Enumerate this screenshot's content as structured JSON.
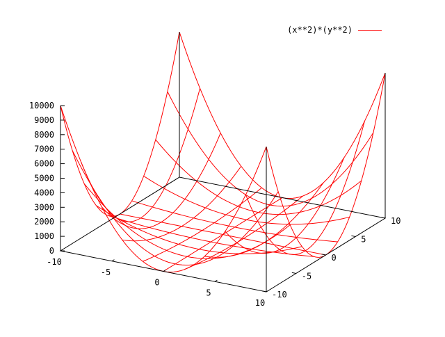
{
  "chart_data": {
    "type": "surface",
    "function": "(x**2)*(y**2)",
    "legend": {
      "label": "(x**2)*(y**2)",
      "position": "top-right"
    },
    "grid": false,
    "xrange": [
      -10,
      10
    ],
    "yrange": [
      -10,
      10
    ],
    "zrange": [
      0,
      10000
    ],
    "isosamples": [
      11,
      11
    ],
    "x_ticks": [
      -10,
      -5,
      0,
      5,
      10
    ],
    "y_ticks": [
      -10,
      -5,
      0,
      5,
      10
    ],
    "z_ticks": [
      0,
      1000,
      2000,
      3000,
      4000,
      5000,
      6000,
      7000,
      8000,
      9000,
      10000
    ],
    "series": [
      {
        "name": "(x**2)*(y**2)",
        "color": "#ff0000"
      }
    ]
  }
}
